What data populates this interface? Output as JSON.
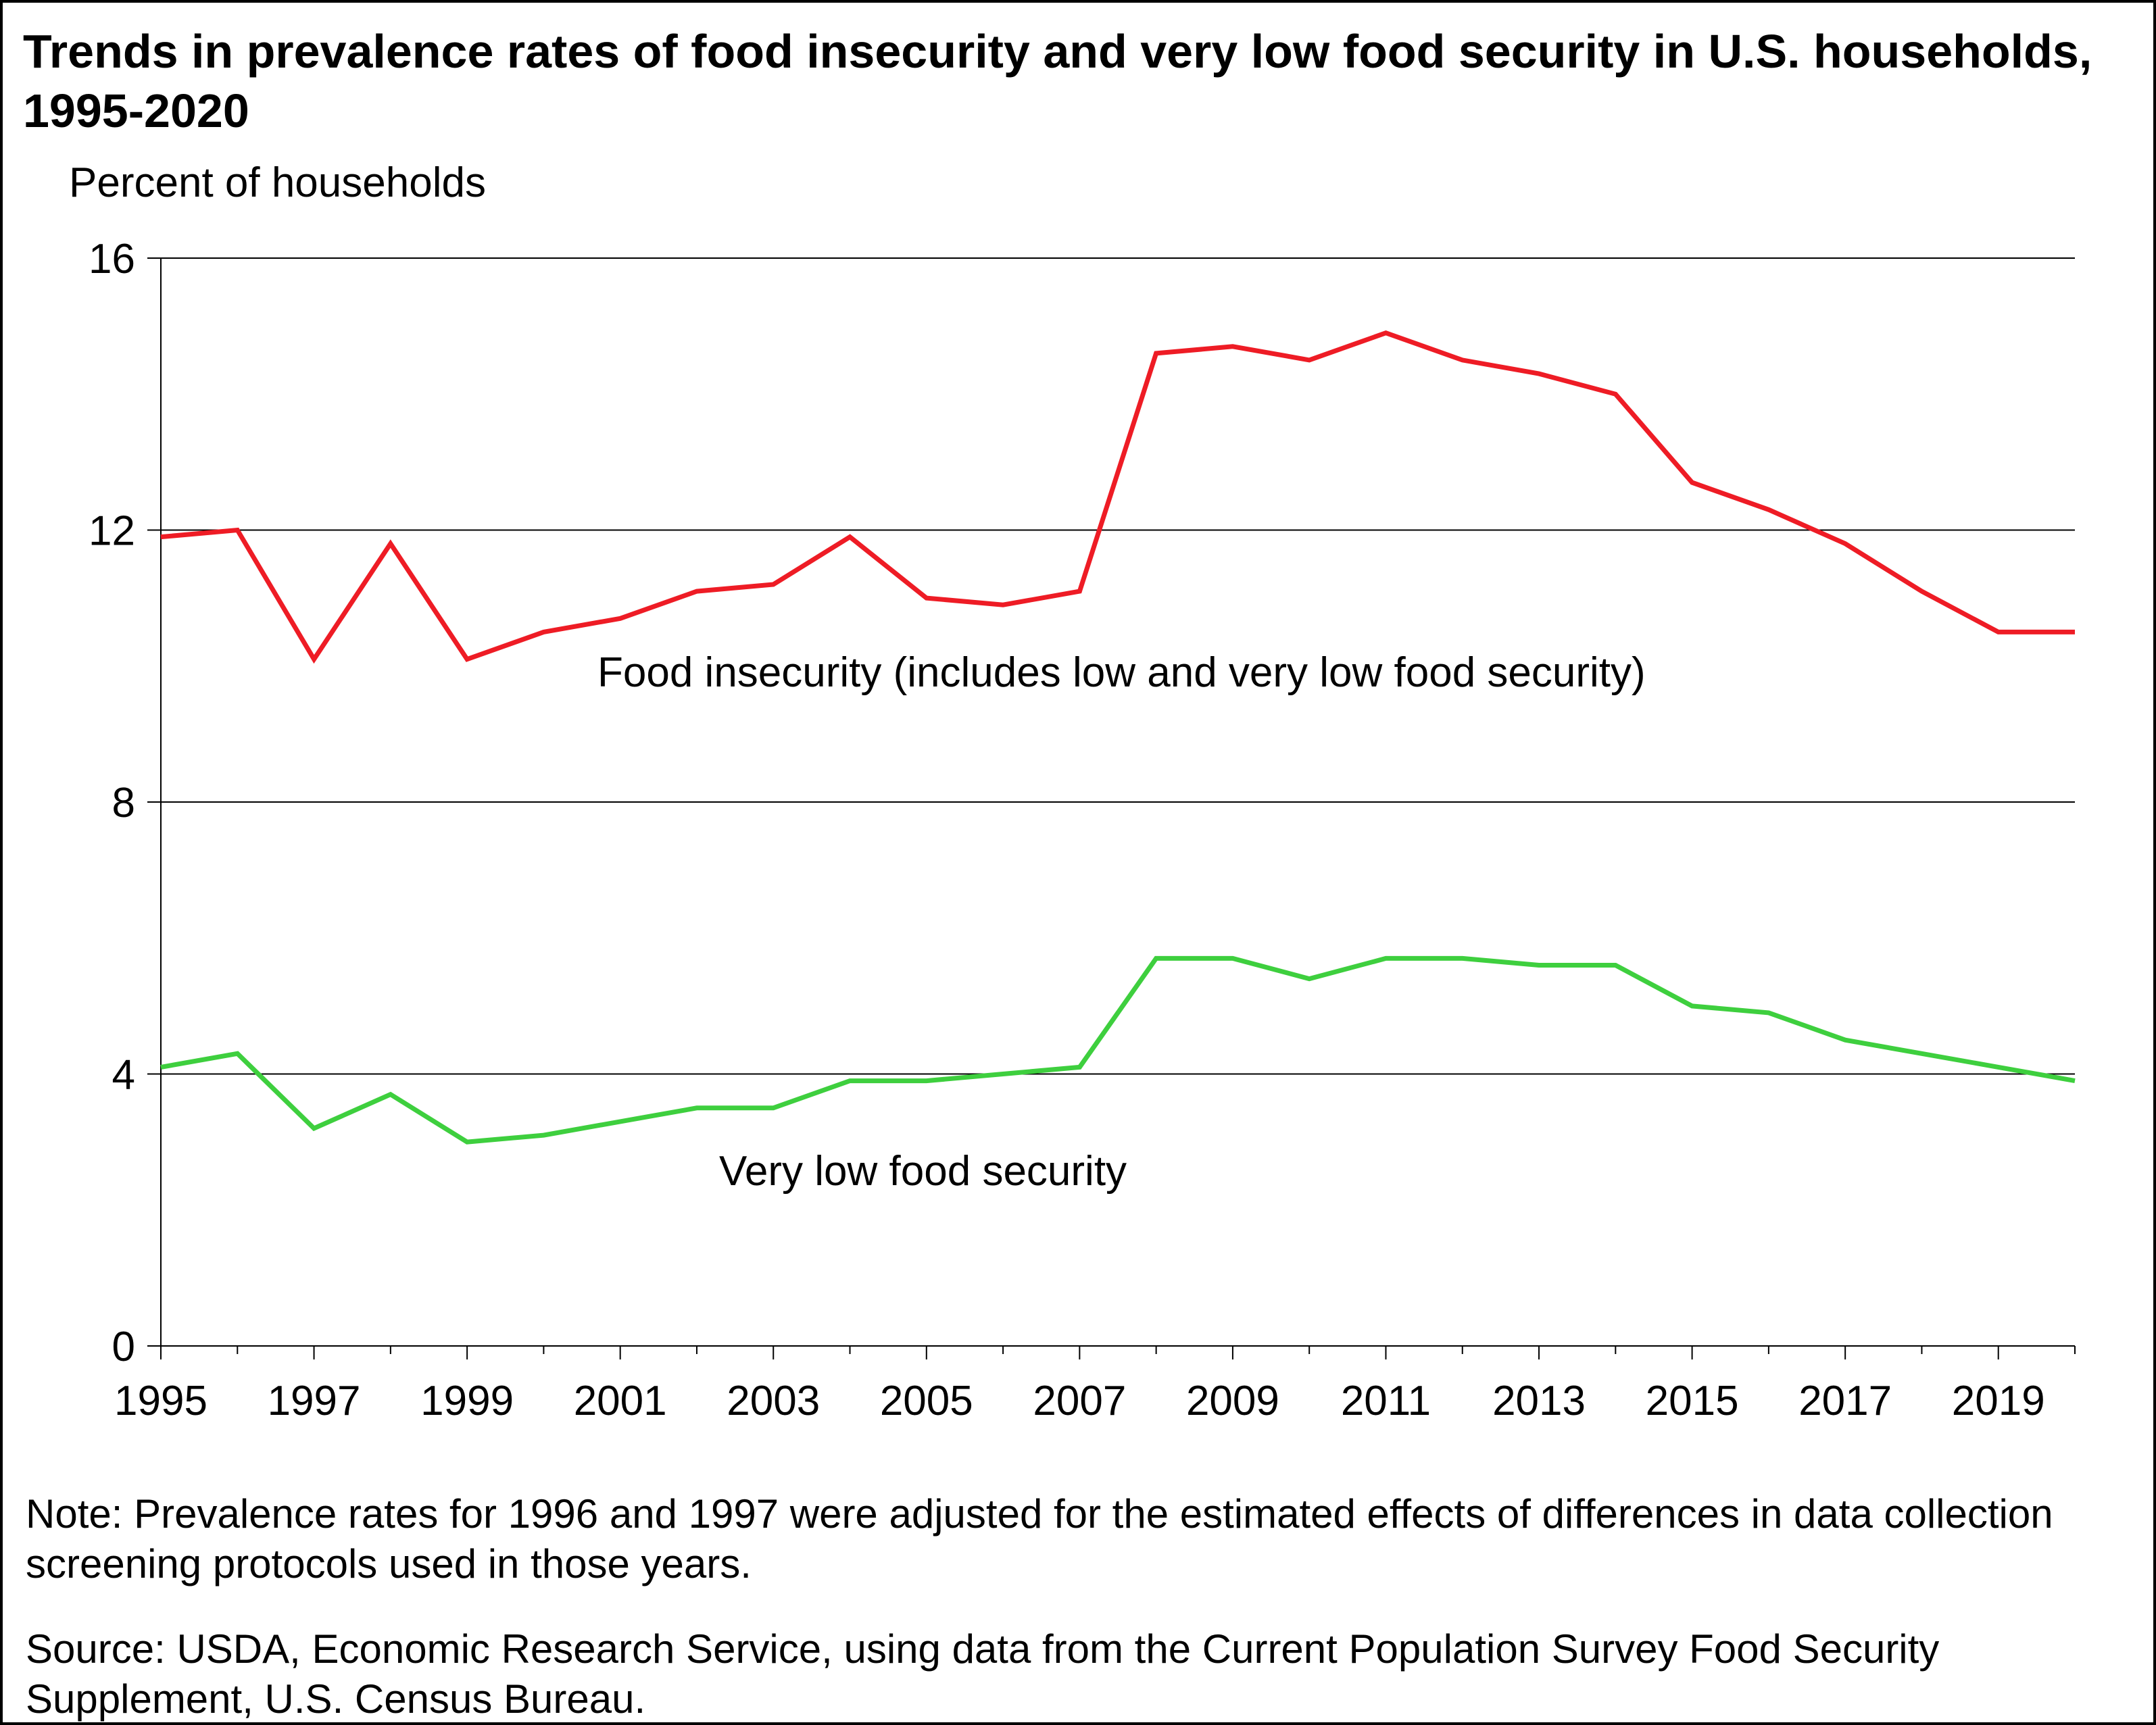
{
  "chart_data": {
    "type": "line",
    "title": "Trends in prevalence rates of food insecurity and very low food security in U.S. households, 1995-2020",
    "ylabel": "Percent of households",
    "xlabel": "",
    "ylim": [
      0,
      16
    ],
    "yticks": [
      0,
      4,
      8,
      12,
      16
    ],
    "xlim": [
      1995,
      2020
    ],
    "xticks": [
      1995,
      1997,
      1999,
      2001,
      2003,
      2005,
      2007,
      2009,
      2011,
      2013,
      2015,
      2017,
      2019
    ],
    "grid": "horizontal",
    "x": [
      1995,
      1996,
      1997,
      1998,
      1999,
      2000,
      2001,
      2002,
      2003,
      2004,
      2005,
      2006,
      2007,
      2008,
      2009,
      2010,
      2011,
      2012,
      2013,
      2014,
      2015,
      2016,
      2017,
      2018,
      2019,
      2020
    ],
    "series": [
      {
        "name": "Food insecurity (includes low and very low food security)",
        "color": "#ee1c25",
        "values": [
          11.9,
          12.0,
          10.1,
          11.8,
          10.1,
          10.5,
          10.7,
          11.1,
          11.2,
          11.9,
          11.0,
          10.9,
          11.1,
          14.6,
          14.7,
          14.5,
          14.9,
          14.5,
          14.3,
          14.0,
          12.7,
          12.3,
          11.8,
          11.1,
          10.5,
          10.5
        ]
      },
      {
        "name": "Very low food security",
        "color": "#3ecf3e",
        "values": [
          4.1,
          4.3,
          3.2,
          3.7,
          3.0,
          3.1,
          3.3,
          3.5,
          3.5,
          3.9,
          3.9,
          4.0,
          4.1,
          5.7,
          5.7,
          5.4,
          5.7,
          5.7,
          5.6,
          5.6,
          5.0,
          4.9,
          4.5,
          4.3,
          4.1,
          3.9
        ]
      }
    ],
    "note": "Note: Prevalence rates for 1996 and 1997 were adjusted for the estimated effects of differences in data collection screening protocols used in those years.",
    "source": "Source: USDA, Economic Research Service, using data from the Current Population Survey Food Security Supplement, U.S. Census Bureau."
  }
}
